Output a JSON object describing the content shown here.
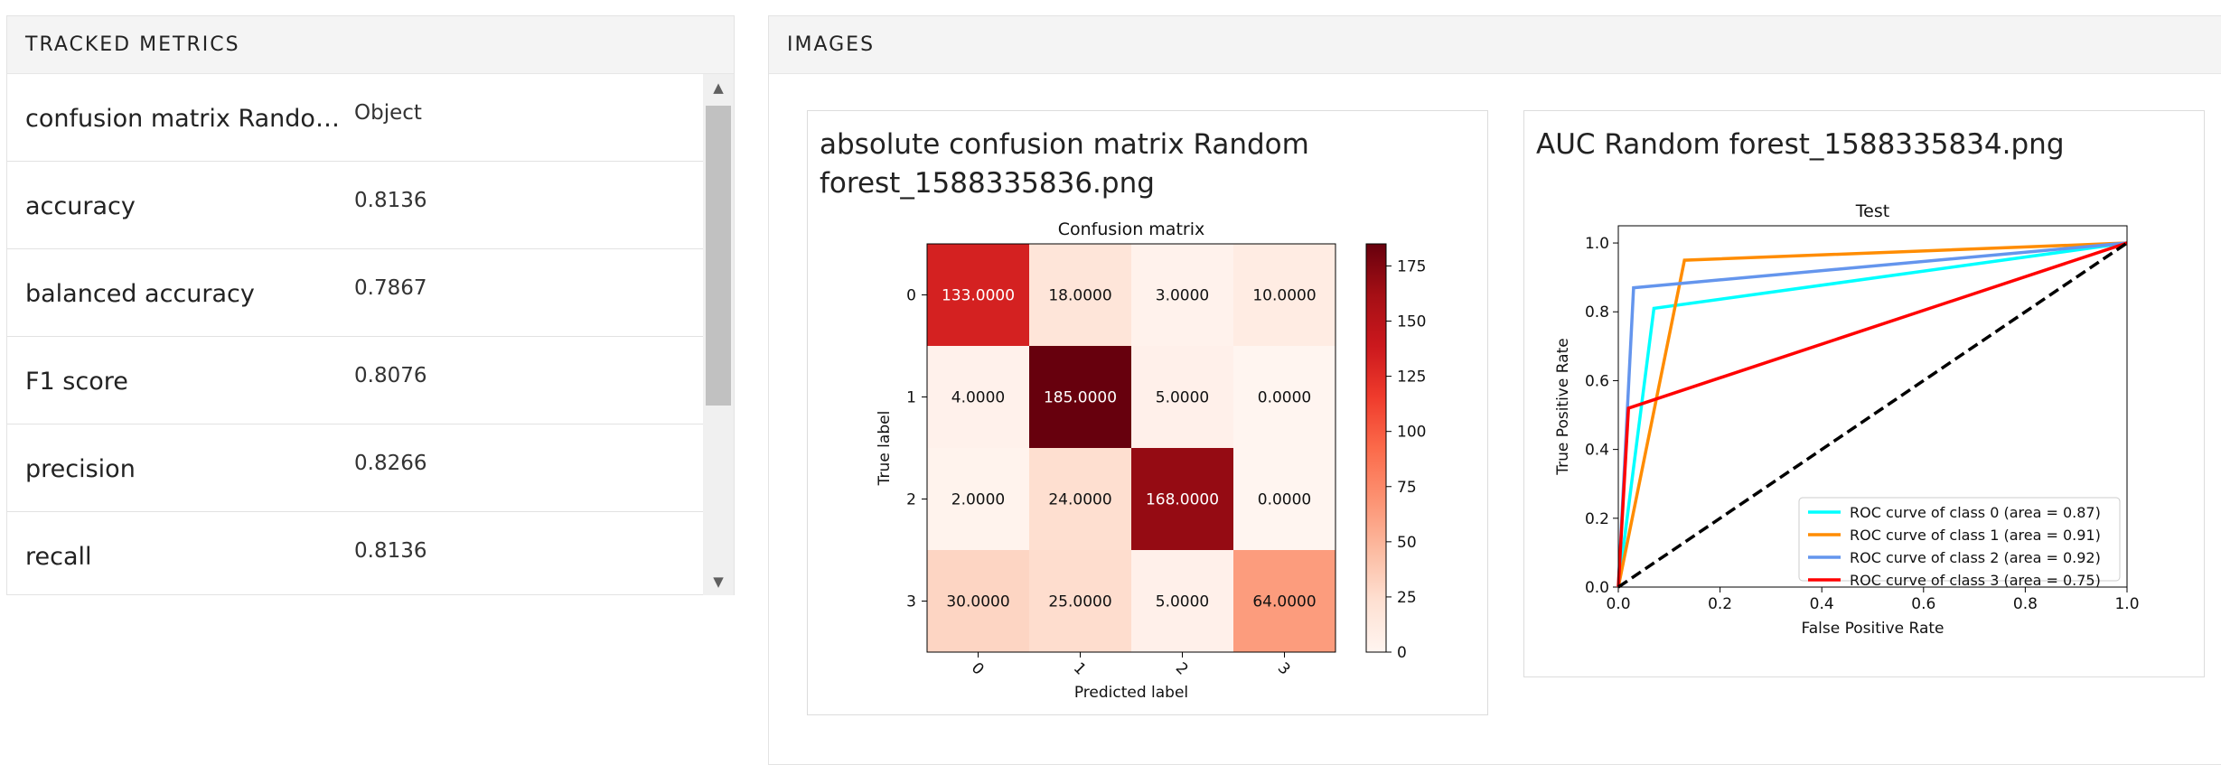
{
  "metrics_panel": {
    "title": "TRACKED METRICS",
    "rows": [
      {
        "name": "confusion matrix Rando…",
        "value": "Object"
      },
      {
        "name": "accuracy",
        "value": "0.8136"
      },
      {
        "name": "balanced accuracy",
        "value": "0.7867"
      },
      {
        "name": "F1 score",
        "value": "0.8076"
      },
      {
        "name": "precision",
        "value": "0.8266"
      },
      {
        "name": "recall",
        "value": "0.8136"
      }
    ]
  },
  "images_panel": {
    "title": "IMAGES",
    "confusion_card": {
      "title": "absolute confusion matrix Random forest_1588335836.png"
    },
    "auc_card": {
      "title": "AUC Random forest_1588335834.png"
    }
  },
  "chart_data": [
    {
      "type": "heatmap",
      "title": "Confusion matrix",
      "xlabel": "Predicted label",
      "ylabel": "True label",
      "x_categories": [
        "0",
        "1",
        "2",
        "3"
      ],
      "y_categories": [
        "0",
        "1",
        "2",
        "3"
      ],
      "values": [
        [
          133,
          18,
          3,
          10
        ],
        [
          4,
          185,
          5,
          0
        ],
        [
          2,
          24,
          168,
          0
        ],
        [
          30,
          25,
          5,
          64
        ]
      ],
      "cell_labels": [
        [
          "133.0000",
          "18.0000",
          "3.0000",
          "10.0000"
        ],
        [
          "4.0000",
          "185.0000",
          "5.0000",
          "0.0000"
        ],
        [
          "2.0000",
          "24.0000",
          "168.0000",
          "0.0000"
        ],
        [
          "30.0000",
          "25.0000",
          "5.0000",
          "64.0000"
        ]
      ],
      "colormap": "Reds",
      "color_range": [
        0,
        185
      ],
      "colorbar_ticks": [
        "0",
        "25",
        "50",
        "75",
        "100",
        "125",
        "150",
        "175"
      ]
    },
    {
      "type": "line",
      "title": "Test",
      "xlabel": "False Positive Rate",
      "ylabel": "True Positive Rate",
      "xlim": [
        0,
        1
      ],
      "ylim": [
        0,
        1.05
      ],
      "x_ticks": [
        "0.0",
        "0.2",
        "0.4",
        "0.6",
        "0.8",
        "1.0"
      ],
      "y_ticks": [
        "0.0",
        "0.2",
        "0.4",
        "0.6",
        "0.8",
        "1.0"
      ],
      "legend_position": "lower-right",
      "series": [
        {
          "name": "ROC curve of class 0 (area = 0.87)",
          "color": "#00ffff",
          "points": [
            [
              0,
              0
            ],
            [
              0.07,
              0.81
            ],
            [
              1,
              1
            ]
          ]
        },
        {
          "name": "ROC curve of class 1 (area = 0.91)",
          "color": "#ff8c00",
          "points": [
            [
              0,
              0
            ],
            [
              0.13,
              0.95
            ],
            [
              1,
              1
            ]
          ]
        },
        {
          "name": "ROC curve of class 2 (area = 0.92)",
          "color": "#6495ed",
          "points": [
            [
              0,
              0
            ],
            [
              0.03,
              0.87
            ],
            [
              1,
              1
            ]
          ]
        },
        {
          "name": "ROC curve of class 3 (area = 0.75)",
          "color": "#ff0000",
          "points": [
            [
              0,
              0
            ],
            [
              0.02,
              0.52
            ],
            [
              1,
              1
            ]
          ]
        }
      ],
      "reference_line": {
        "points": [
          [
            0,
            0
          ],
          [
            1,
            1
          ]
        ],
        "color": "#000000",
        "style": "dashed"
      }
    }
  ]
}
